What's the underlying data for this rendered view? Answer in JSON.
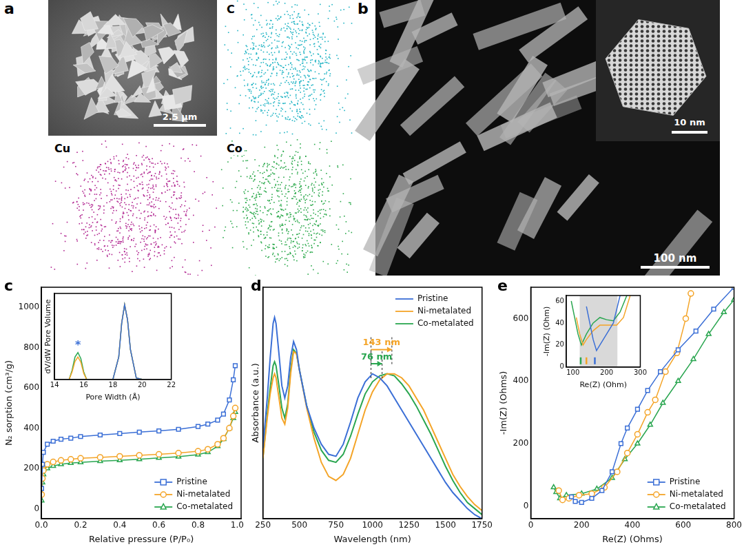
{
  "figure": {
    "panel_a": {
      "label": "a",
      "scale_bar": "2.5 μm",
      "maps": [
        {
          "text": "C",
          "color": "#1fb3c4"
        },
        {
          "text": "Cu",
          "color": "#b0238f"
        },
        {
          "text": "Co",
          "color": "#2aa84a"
        }
      ]
    },
    "panel_b": {
      "label": "b",
      "scale_bar": "100 nm",
      "inset_scale_bar": "10 nm"
    }
  },
  "chart_data": [
    {
      "panel": "c",
      "type": "line",
      "x_label": "Relative pressure (P/P₀)",
      "y_label": "N₂ sorption (cm³/g)",
      "xlim": [
        0,
        1.02
      ],
      "xticks": [
        {
          "value": 0,
          "label": "0.0"
        },
        {
          "value": 0.2,
          "label": "0.2"
        },
        {
          "value": 0.4,
          "label": "0.4"
        },
        {
          "value": 0.6,
          "label": "0.6"
        },
        {
          "value": 0.8,
          "label": "0.8"
        },
        {
          "value": 1,
          "label": "1.0"
        }
      ],
      "ylim": [
        -50,
        1100
      ],
      "yticks": [
        0,
        200,
        400,
        600,
        800,
        1000
      ],
      "grid": false,
      "legend": "lower right",
      "x": [
        0.001,
        0.005,
        0.01,
        0.03,
        0.06,
        0.1,
        0.15,
        0.2,
        0.3,
        0.4,
        0.5,
        0.6,
        0.7,
        0.8,
        0.85,
        0.9,
        0.93,
        0.96,
        0.98,
        0.99
      ],
      "series": [
        {
          "name": "Pristine",
          "color": "#3b6fd6",
          "marker": "square",
          "values": [
            100,
            220,
            280,
            320,
            335,
            345,
            350,
            358,
            366,
            373,
            380,
            386,
            394,
            408,
            420,
            440,
            470,
            540,
            640,
            710
          ]
        },
        {
          "name": "Ni-metalated",
          "color": "#f4a427",
          "marker": "circle",
          "values": [
            70,
            150,
            190,
            220,
            232,
            240,
            245,
            250,
            255,
            260,
            265,
            270,
            276,
            285,
            295,
            320,
            350,
            400,
            460,
            500
          ]
        },
        {
          "name": "Co-metalated",
          "color": "#2aa650",
          "marker": "triangle",
          "values": [
            40,
            130,
            170,
            200,
            212,
            220,
            226,
            230,
            236,
            240,
            245,
            252,
            258,
            268,
            280,
            310,
            345,
            400,
            450,
            480
          ]
        }
      ],
      "inset": {
        "type": "line",
        "x_label": "Pore Width (Å)",
        "y_label": "dV/dW Pore Volume",
        "xlim": [
          14,
          22
        ],
        "xticks": [
          14,
          16,
          18,
          20,
          22
        ],
        "ylim": [
          0,
          1.15
        ],
        "tick_labels": "x",
        "grid": false,
        "x": [
          14,
          15,
          15.2,
          15.4,
          15.6,
          15.8,
          16,
          16.2,
          17,
          18,
          18.4,
          18.6,
          18.8,
          19,
          19.2,
          19.6,
          20,
          22
        ],
        "series": [
          {
            "name": "Pristine",
            "color": "#3b6fd6",
            "marker": "none",
            "values": [
              0,
              0,
              0,
              0,
              0,
              0,
              0,
              0,
              0,
              0,
              0.3,
              0.75,
              1.0,
              0.8,
              0.4,
              0.02,
              0,
              0
            ]
          },
          {
            "name": "Ni-metalated",
            "color": "#f4a427",
            "marker": "none",
            "values": [
              0,
              0,
              0.1,
              0.24,
              0.3,
              0.23,
              0.08,
              0,
              0,
              0,
              0.3,
              0.76,
              1.0,
              0.8,
              0.4,
              0.02,
              0,
              0
            ]
          },
          {
            "name": "Co-metalated",
            "color": "#2aa650",
            "marker": "none",
            "values": [
              0,
              0,
              0.12,
              0.3,
              0.36,
              0.28,
              0.1,
              0,
              0,
              0,
              0.3,
              0.75,
              1.0,
              0.8,
              0.4,
              0.02,
              0,
              0
            ]
          }
        ],
        "annotations": [
          {
            "text": "*",
            "x": 15.6,
            "y": 0.45,
            "color": "#3b6fd6"
          }
        ]
      }
    },
    {
      "panel": "d",
      "type": "line",
      "x_label": "Wavelength (nm)",
      "y_label": "Absorbance (a.u.)",
      "xlim": [
        250,
        1750
      ],
      "xticks": [
        250,
        500,
        750,
        1000,
        1250,
        1500,
        1750
      ],
      "ylim": [
        0,
        1.15
      ],
      "tick_labels": "x",
      "grid": false,
      "legend": "upper right",
      "x": [
        250,
        280,
        300,
        320,
        330,
        340,
        360,
        380,
        400,
        420,
        440,
        460,
        480,
        500,
        550,
        600,
        650,
        700,
        750,
        800,
        850,
        900,
        950,
        1000,
        1050,
        1100,
        1150,
        1200,
        1250,
        1300,
        1350,
        1400,
        1450,
        1500,
        1550,
        1600,
        1650,
        1700,
        1750
      ],
      "series": [
        {
          "name": "Pristine",
          "color": "#3b6fd6",
          "marker": "none",
          "values": [
            0.35,
            0.6,
            0.8,
            0.97,
            1.0,
            0.97,
            0.82,
            0.66,
            0.6,
            0.66,
            0.8,
            0.88,
            0.84,
            0.74,
            0.56,
            0.45,
            0.37,
            0.32,
            0.31,
            0.37,
            0.48,
            0.6,
            0.68,
            0.72,
            0.7,
            0.66,
            0.6,
            0.54,
            0.48,
            0.42,
            0.36,
            0.3,
            0.24,
            0.18,
            0.13,
            0.09,
            0.05,
            0.02,
            0.0
          ]
        },
        {
          "name": "Ni-metalated",
          "color": "#f4a427",
          "marker": "none",
          "values": [
            0.3,
            0.5,
            0.62,
            0.7,
            0.72,
            0.7,
            0.6,
            0.5,
            0.47,
            0.55,
            0.72,
            0.83,
            0.82,
            0.74,
            0.55,
            0.4,
            0.28,
            0.21,
            0.19,
            0.22,
            0.3,
            0.42,
            0.54,
            0.63,
            0.69,
            0.72,
            0.72,
            0.7,
            0.66,
            0.6,
            0.54,
            0.46,
            0.38,
            0.3,
            0.22,
            0.16,
            0.11,
            0.07,
            0.04
          ]
        },
        {
          "name": "Co-metalated",
          "color": "#2aa650",
          "marker": "none",
          "values": [
            0.3,
            0.52,
            0.65,
            0.76,
            0.78,
            0.76,
            0.66,
            0.55,
            0.5,
            0.57,
            0.74,
            0.84,
            0.82,
            0.74,
            0.56,
            0.43,
            0.34,
            0.29,
            0.28,
            0.32,
            0.41,
            0.52,
            0.62,
            0.68,
            0.71,
            0.72,
            0.71,
            0.67,
            0.62,
            0.56,
            0.49,
            0.42,
            0.34,
            0.26,
            0.19,
            0.13,
            0.08,
            0.05,
            0.02
          ]
        }
      ],
      "annotations": [
        {
          "text": "143 nm",
          "x": [
            990,
            1133
          ],
          "y": 0.84,
          "color": "#f4a427"
        },
        {
          "text": "76 nm",
          "x": [
            990,
            1066
          ],
          "y": 0.77,
          "color": "#2aa650"
        }
      ]
    },
    {
      "panel": "e",
      "type": "line",
      "x_label": "Re(Z) (Ohms)",
      "y_label": "-Im(Z) (Ohms)",
      "xlim": [
        0,
        800
      ],
      "xticks": [
        0,
        200,
        400,
        600,
        800
      ],
      "ylim": [
        -40,
        700
      ],
      "yticks": [
        0,
        200,
        400,
        600
      ],
      "grid": false,
      "legend": "lower right",
      "series": [
        {
          "name": "Pristine",
          "color": "#3b6fd6",
          "marker": "square",
          "x": [
            160,
            175,
            200,
            240,
            280,
            320,
            355,
            380,
            420,
            460,
            510,
            580,
            650,
            720,
            800
          ],
          "values": [
            30,
            15,
            12,
            25,
            50,
            110,
            200,
            250,
            310,
            370,
            430,
            500,
            560,
            630,
            700
          ]
        },
        {
          "name": "Ni-metalated",
          "color": "#f4a427",
          "marker": "circle",
          "x": [
            110,
            125,
            150,
            190,
            240,
            290,
            340,
            380,
            420,
            460,
            490,
            530,
            575,
            610,
            630
          ],
          "values": [
            50,
            20,
            25,
            35,
            40,
            60,
            110,
            170,
            230,
            300,
            340,
            430,
            490,
            600,
            680
          ]
        },
        {
          "name": "Co-metalated",
          "color": "#2aa650",
          "marker": "triangle",
          "x": [
            90,
            100,
            115,
            140,
            200,
            260,
            320,
            370,
            420,
            470,
            520,
            580,
            640,
            700,
            760,
            800
          ],
          "values": [
            60,
            45,
            25,
            35,
            40,
            55,
            90,
            150,
            200,
            260,
            330,
            400,
            470,
            550,
            620,
            660
          ]
        }
      ],
      "inset": {
        "type": "line",
        "x_label": "Re(Z) (Ohm)",
        "y_label": "-Im(Z) (Ohm)",
        "xlim": [
          80,
          300
        ],
        "xticks": [
          100,
          200,
          300
        ],
        "ylim": [
          0,
          65
        ],
        "yticks": [
          0,
          20,
          40,
          60
        ],
        "grid": false,
        "highlight": {
          "x": [
            120,
            232
          ],
          "color": "#d9d9d9"
        },
        "marks": [
          {
            "x": 123,
            "color": "#2aa650"
          },
          {
            "x": 140,
            "color": "#f4a427"
          },
          {
            "x": 165,
            "color": "#3b6fd6"
          }
        ],
        "series": [
          {
            "name": "Pristine",
            "color": "#3b6fd6",
            "marker": "none",
            "x": [
              140,
              150,
              160,
              170,
              180,
              200,
              220,
              240
            ],
            "values": [
              55,
              40,
              25,
              15,
              20,
              30,
              40,
              65
            ]
          },
          {
            "name": "Ni-metalated",
            "color": "#f4a427",
            "marker": "none",
            "x": [
              110,
              120,
              130,
              140,
              160,
              180,
              200,
              230,
              250,
              270
            ],
            "values": [
              45,
              30,
              20,
              25,
              33,
              38,
              38,
              38,
              45,
              65
            ]
          },
          {
            "name": "Co-metalated",
            "color": "#2aa650",
            "marker": "none",
            "x": [
              95,
              105,
              115,
              125,
              140,
              160,
              180,
              200,
              220,
              240,
              260
            ],
            "values": [
              60,
              45,
              30,
              20,
              30,
              40,
              45,
              43,
              42,
              50,
              65
            ]
          }
        ]
      }
    }
  ]
}
